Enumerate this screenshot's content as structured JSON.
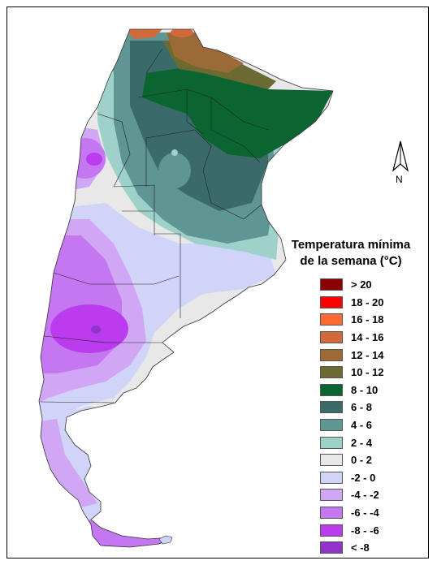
{
  "legend": {
    "title_line1": "Temperatura mínima",
    "title_line2": "de la semana (°C)",
    "items": [
      {
        "label": "> 20",
        "color": "#8b0000"
      },
      {
        "label": "18 - 20",
        "color": "#ff0000"
      },
      {
        "label": "16 - 18",
        "color": "#ff6a33"
      },
      {
        "label": "14 - 16",
        "color": "#d2693a"
      },
      {
        "label": "12 - 14",
        "color": "#9c6a36"
      },
      {
        "label": "10 - 12",
        "color": "#6b6a33"
      },
      {
        "label": "8 - 10",
        "color": "#0b6531"
      },
      {
        "label": "6 - 8",
        "color": "#3a6a6a"
      },
      {
        "label": "4 - 6",
        "color": "#5f9592"
      },
      {
        "label": "2 - 4",
        "color": "#9fd1cb"
      },
      {
        "label": "0 - 2",
        "color": "#e8e8e8"
      },
      {
        "label": "-2 - 0",
        "color": "#d0d4f8"
      },
      {
        "label": "-4 - -2",
        "color": "#d1a6f5"
      },
      {
        "label": "-6 - -4",
        "color": "#c576f1"
      },
      {
        "label": "-8 - -6",
        "color": "#bb3bee"
      },
      {
        "label": "< -8",
        "color": "#9232cc"
      }
    ]
  },
  "north_arrow": {
    "label": "N"
  }
}
